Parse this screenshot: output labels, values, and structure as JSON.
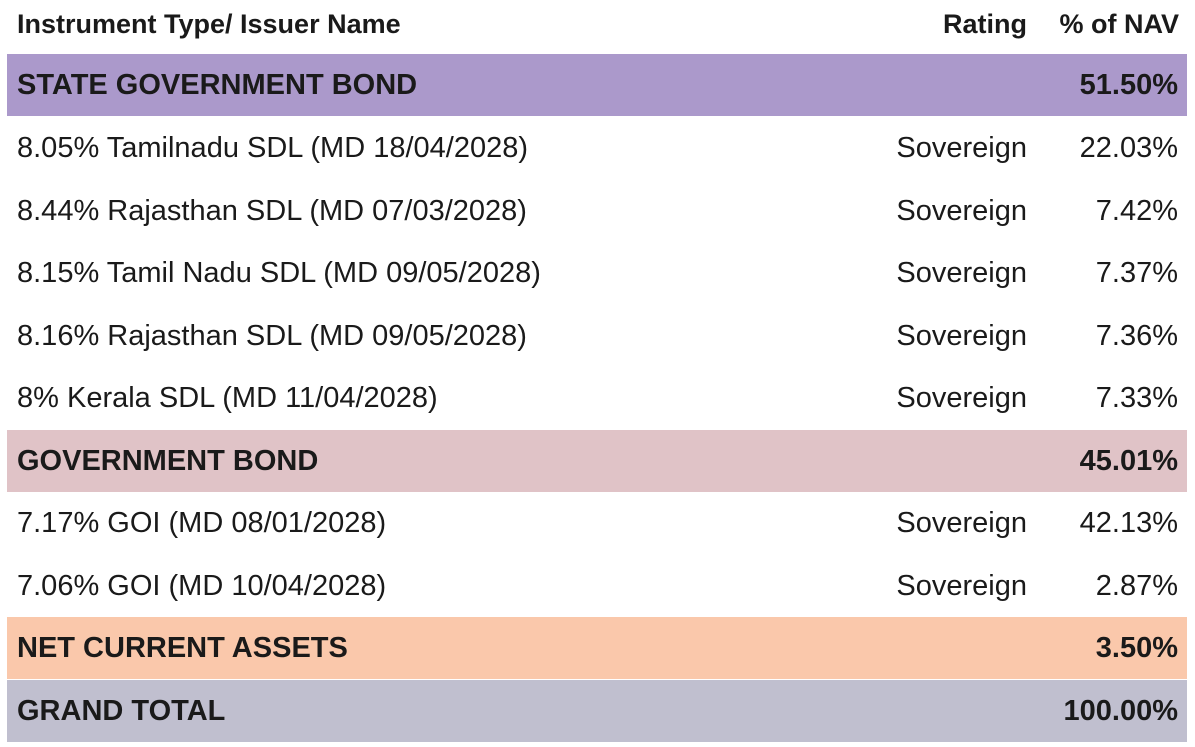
{
  "header": {
    "name": "Instrument Type/ Issuer Name",
    "rating": "Rating",
    "nav": "% of NAV"
  },
  "groups": [
    {
      "label": "STATE GOVERNMENT BOND",
      "nav": "51.50%",
      "color": "#ab99cb",
      "items": [
        {
          "name": "8.05% Tamilnadu SDL (MD 18/04/2028)",
          "rating": "Sovereign",
          "nav": "22.03%"
        },
        {
          "name": "8.44% Rajasthan SDL (MD 07/03/2028)",
          "rating": "Sovereign",
          "nav": "7.42%"
        },
        {
          "name": "8.15% Tamil Nadu SDL (MD 09/05/2028)",
          "rating": "Sovereign",
          "nav": "7.37%"
        },
        {
          "name": "8.16% Rajasthan SDL (MD 09/05/2028)",
          "rating": "Sovereign",
          "nav": "7.36%"
        },
        {
          "name": "8% Kerala SDL (MD 11/04/2028)",
          "rating": "Sovereign",
          "nav": "7.33%"
        }
      ]
    },
    {
      "label": "GOVERNMENT BOND",
      "nav": "45.01%",
      "color": "#e0c3c7",
      "items": [
        {
          "name": "7.17% GOI (MD 08/01/2028)",
          "rating": "Sovereign",
          "nav": "42.13%"
        },
        {
          "name": "7.06% GOI (MD 10/04/2028)",
          "rating": "Sovereign",
          "nav": "2.87%"
        }
      ]
    },
    {
      "label": "NET CURRENT ASSETS",
      "nav": "3.50%",
      "color": "#fac8ab",
      "items": []
    },
    {
      "label": "GRAND TOTAL",
      "nav": "100.00%",
      "color": "#c0bfcf",
      "items": []
    }
  ]
}
